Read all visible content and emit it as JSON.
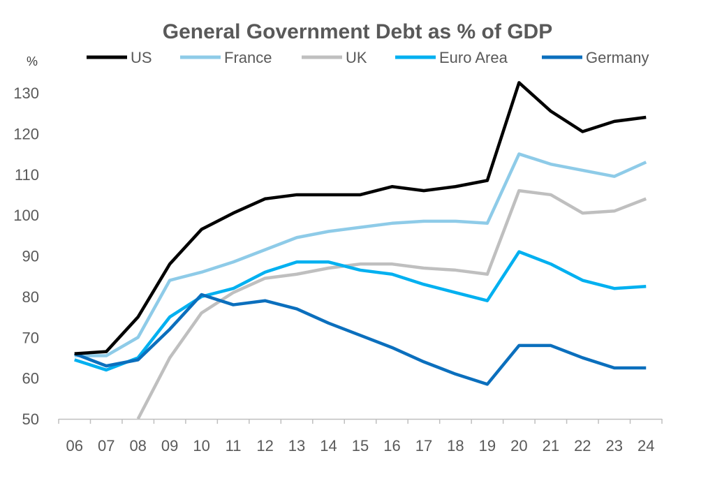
{
  "chart_data": {
    "type": "line",
    "title": "General Government Debt as % of GDP",
    "ylabel": "%",
    "xlabel": "",
    "ylim": [
      50,
      130
    ],
    "yticks": [
      50,
      60,
      70,
      80,
      90,
      100,
      110,
      120,
      130
    ],
    "categories": [
      "06",
      "07",
      "08",
      "09",
      "10",
      "11",
      "12",
      "13",
      "14",
      "15",
      "16",
      "17",
      "18",
      "19",
      "20",
      "21",
      "22",
      "23",
      "24"
    ],
    "legend_position": "top",
    "grid": false,
    "series": [
      {
        "name": "US",
        "color": "#000000",
        "values": [
          66,
          66.5,
          75,
          88,
          96.5,
          100.5,
          104,
          105,
          105,
          105,
          107,
          106,
          107,
          108.5,
          132.5,
          125.5,
          120.5,
          123,
          124
        ]
      },
      {
        "name": "France",
        "color": "#8ecbe8",
        "values": [
          65.5,
          65.5,
          70,
          84,
          86,
          88.5,
          91.5,
          94.5,
          96,
          97,
          98,
          98.5,
          98.5,
          98,
          115,
          112.5,
          111,
          109.5,
          113
        ]
      },
      {
        "name": "UK",
        "color": "#bfbfbf",
        "values": [
          null,
          null,
          50,
          65,
          76,
          81,
          84.5,
          85.5,
          87,
          88,
          88,
          87,
          86.5,
          85.5,
          106,
          105,
          100.5,
          101,
          104
        ]
      },
      {
        "name": "Euro Area",
        "color": "#00b0f0",
        "values": [
          64.5,
          62,
          65,
          75,
          80,
          82,
          86,
          88.5,
          88.5,
          86.5,
          85.5,
          83,
          81,
          79,
          91,
          88,
          84,
          82,
          82.5
        ]
      },
      {
        "name": "Germany",
        "color": "#0b6fbd",
        "values": [
          66,
          63,
          64.5,
          72,
          80.5,
          78,
          79,
          77,
          73.5,
          70.5,
          67.5,
          64,
          61,
          58.5,
          68,
          68,
          65,
          62.5,
          62.5
        ]
      }
    ]
  }
}
